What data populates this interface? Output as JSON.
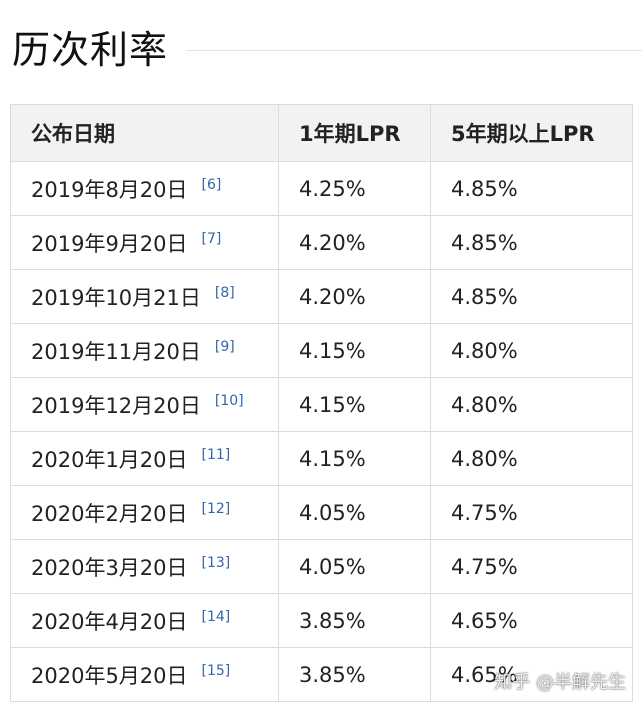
{
  "heading": "历次利率",
  "table": {
    "headers": [
      "公布日期",
      "1年期LPR",
      "5年期以上LPR"
    ],
    "rows": [
      {
        "date": "2019年8月20日",
        "ref": "[6]",
        "lpr1y": "4.25%",
        "lpr5y": "4.85%"
      },
      {
        "date": "2019年9月20日",
        "ref": "[7]",
        "lpr1y": "4.20%",
        "lpr5y": "4.85%"
      },
      {
        "date": "2019年10月21日",
        "ref": "[8]",
        "lpr1y": "4.20%",
        "lpr5y": "4.85%"
      },
      {
        "date": "2019年11月20日",
        "ref": "[9]",
        "lpr1y": "4.15%",
        "lpr5y": "4.80%"
      },
      {
        "date": "2019年12月20日",
        "ref": "[10]",
        "lpr1y": "4.15%",
        "lpr5y": "4.80%"
      },
      {
        "date": "2020年1月20日",
        "ref": "[11]",
        "lpr1y": "4.15%",
        "lpr5y": "4.80%"
      },
      {
        "date": "2020年2月20日",
        "ref": "[12]",
        "lpr1y": "4.05%",
        "lpr5y": "4.75%"
      },
      {
        "date": "2020年3月20日",
        "ref": "[13]",
        "lpr1y": "4.05%",
        "lpr5y": "4.75%"
      },
      {
        "date": "2020年4月20日",
        "ref": "[14]",
        "lpr1y": "3.85%",
        "lpr5y": "4.65%"
      },
      {
        "date": "2020年5月20日",
        "ref": "[15]",
        "lpr1y": "3.85%",
        "lpr5y": "4.65%"
      }
    ]
  },
  "watermark": "知乎 @半解先生"
}
